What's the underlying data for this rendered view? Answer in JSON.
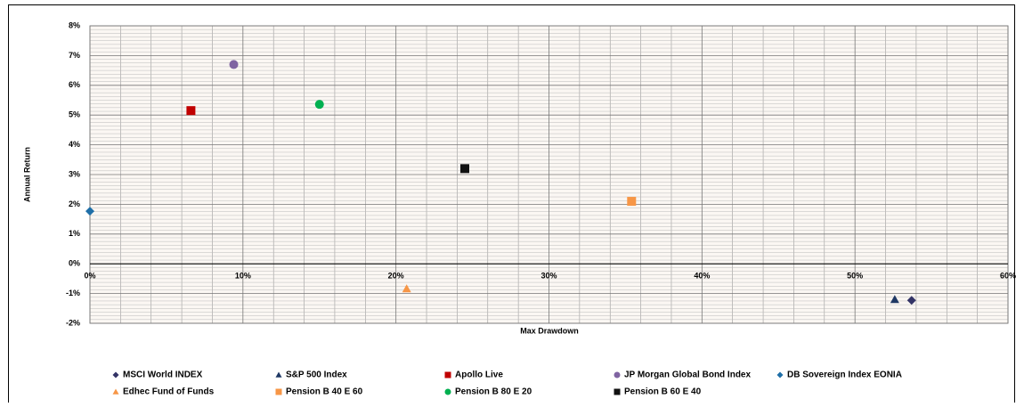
{
  "chart_data": {
    "type": "scatter",
    "x_label": "Max  Drawdown",
    "y_label": "Annual Return",
    "xlim": [
      0,
      60
    ],
    "ylim": [
      -2,
      8
    ],
    "xticks": [
      {
        "value": 0,
        "label": "0%"
      },
      {
        "value": 10,
        "label": "10%"
      },
      {
        "value": 20,
        "label": "20%"
      },
      {
        "value": 30,
        "label": "30%"
      },
      {
        "value": 40,
        "label": "40%"
      },
      {
        "value": 50,
        "label": "50%"
      },
      {
        "value": 60,
        "label": "60%"
      }
    ],
    "yticks": [
      {
        "value": -2,
        "label": "-2%"
      },
      {
        "value": -1,
        "label": "-1%"
      },
      {
        "value": 0,
        "label": "0%"
      },
      {
        "value": 1,
        "label": "1%"
      },
      {
        "value": 2,
        "label": "2%"
      },
      {
        "value": 3,
        "label": "3%"
      },
      {
        "value": 4,
        "label": "4%"
      },
      {
        "value": 5,
        "label": "5%"
      },
      {
        "value": 6,
        "label": "6%"
      },
      {
        "value": 7,
        "label": "7%"
      },
      {
        "value": 8,
        "label": "8%"
      }
    ],
    "grid": true,
    "legend": "bottom",
    "series": [
      {
        "name": "MSCI World INDEX",
        "color": "#333366",
        "marker": "diamond",
        "x": [
          53.7
        ],
        "y": [
          -1.23
        ]
      },
      {
        "name": "S&P 500 Index",
        "color": "#1f3864",
        "marker": "triangle",
        "x": [
          52.6
        ],
        "y": [
          -1.2
        ]
      },
      {
        "name": "Apollo Live",
        "color": "#c00000",
        "marker": "square",
        "x": [
          6.6
        ],
        "y": [
          5.15
        ]
      },
      {
        "name": "JP Morgan Global Bond Index",
        "color": "#8064a2",
        "marker": "circle",
        "x": [
          9.4
        ],
        "y": [
          6.7
        ]
      },
      {
        "name": "DB Sovereign Index EONIA",
        "color": "#1f6fa8",
        "marker": "diamond",
        "x": [
          0
        ],
        "y": [
          1.77
        ]
      },
      {
        "name": "Edhec Fund of Funds",
        "color": "#f79646",
        "marker": "triangle",
        "x": [
          20.7
        ],
        "y": [
          -0.84
        ]
      },
      {
        "name": "Pension B 40 E 60",
        "color": "#f79646",
        "marker": "square",
        "x": [
          35.4
        ],
        "y": [
          2.1
        ]
      },
      {
        "name": "Pension B 80 E 20",
        "color": "#00b050",
        "marker": "circle",
        "x": [
          15.0
        ],
        "y": [
          5.36
        ]
      },
      {
        "name": "Pension B 60 E 40",
        "color": "#111111",
        "marker": "square",
        "x": [
          24.5
        ],
        "y": [
          3.2
        ]
      }
    ]
  }
}
